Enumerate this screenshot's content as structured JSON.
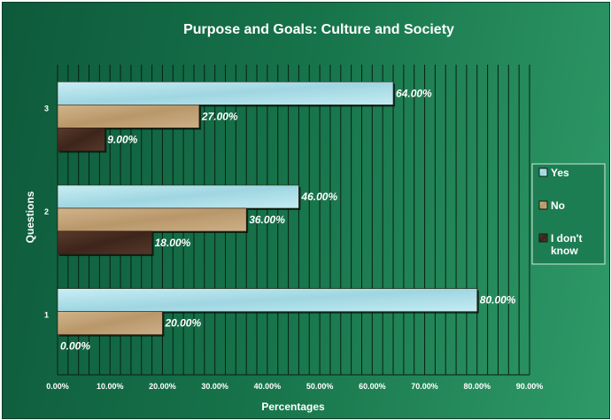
{
  "chart_data": {
    "type": "bar",
    "orientation": "horizontal",
    "title": "Purpose and Goals: Culture and Society",
    "xlabel": "Percentages",
    "ylabel": "Questions",
    "categories": [
      "1",
      "2",
      "3"
    ],
    "series": [
      {
        "name": "Yes",
        "values": [
          80,
          46,
          64
        ],
        "labels": [
          "80.00%",
          "46.00%",
          "64.00%"
        ],
        "color": "#a8dde6"
      },
      {
        "name": "No",
        "values": [
          20,
          36,
          27
        ],
        "labels": [
          "20.00%",
          "36.00%",
          "27.00%"
        ],
        "color": "#c4a57a"
      },
      {
        "name": "I don't know",
        "values": [
          0,
          18,
          9
        ],
        "labels": [
          "0.00%",
          "18.00%",
          "9.00%"
        ],
        "color": "#4a2e22"
      }
    ],
    "xlim": [
      0,
      90
    ],
    "xticks": [
      "0.00%",
      "10.00%",
      "20.00%",
      "30.00%",
      "40.00%",
      "50.00%",
      "60.00%",
      "70.00%",
      "80.00%",
      "90.00%"
    ],
    "grid": true,
    "legend_position": "right"
  }
}
